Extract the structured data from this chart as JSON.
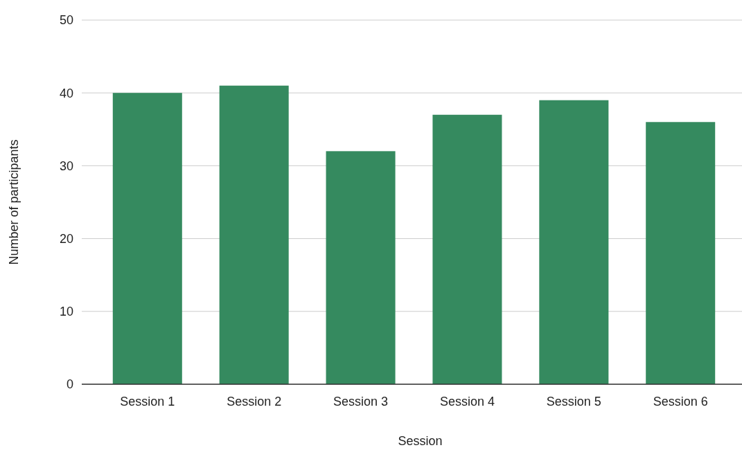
{
  "chart_data": {
    "type": "bar",
    "xlabel": "Session",
    "ylabel": "Number of participants",
    "categories": [
      "Session 1",
      "Session 2",
      "Session 3",
      "Session 4",
      "Session 5",
      "Session 6"
    ],
    "values": [
      40,
      41,
      32,
      37,
      39,
      36
    ],
    "color": "#358a5f",
    "ylim": [
      0,
      50
    ],
    "yticks": [
      0,
      10,
      20,
      30,
      40,
      50
    ],
    "grid": "y"
  }
}
